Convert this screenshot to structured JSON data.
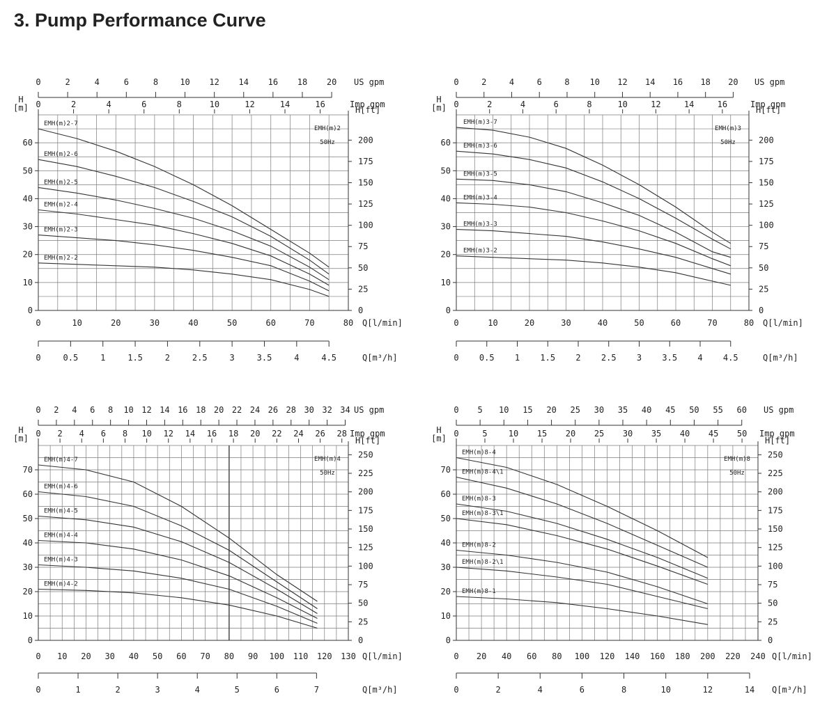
{
  "page": {
    "title": "3. Pump Performance Curve"
  },
  "colors": {
    "grid": "#7a7a7a",
    "curve": "#333333",
    "text": "#222222",
    "background": "#ffffff"
  },
  "chart_data": [
    {
      "type": "line",
      "model": "EMH(m)2",
      "frequency": "50Hz",
      "units": {
        "h_m": "H\n[m]",
        "h_ft": "H[ft]",
        "q_lmin": "Q[l/min]",
        "q_m3h": "Q[m³/h]",
        "usgpm": "US gpm",
        "impgpm": "Imp gpm"
      },
      "xlim": [
        0,
        80
      ],
      "ylim": [
        0,
        70
      ],
      "ftmax": 229.7,
      "ticks": {
        "q_lmin": [
          "0",
          "10",
          "20",
          "30",
          "40",
          "50",
          "60",
          "70",
          "80"
        ],
        "q_m3h": [
          "0",
          "0.5",
          "1",
          "1.5",
          "2",
          "2.5",
          "3",
          "3.5",
          "4",
          "4.5"
        ],
        "usgpm": [
          "0",
          "2",
          "4",
          "6",
          "8",
          "10",
          "12",
          "14",
          "16",
          "18",
          "20"
        ],
        "impgpm": [
          "0",
          "2",
          "4",
          "6",
          "8",
          "10",
          "12",
          "14",
          "16"
        ],
        "h_m": [
          "0",
          "10",
          "20",
          "30",
          "40",
          "50",
          "60"
        ],
        "h_ft": [
          "0",
          "25",
          "50",
          "75",
          "100",
          "125",
          "150",
          "175",
          "200"
        ]
      },
      "series": [
        {
          "name": "EMH(m)2-7",
          "x": [
            0,
            10,
            20,
            30,
            40,
            50,
            60,
            70,
            75
          ],
          "y": [
            65,
            61.5,
            57,
            51.5,
            45,
            37.5,
            29,
            20.5,
            15.5
          ]
        },
        {
          "name": "EMH(m)2-6",
          "x": [
            0,
            10,
            20,
            30,
            40,
            50,
            60,
            70,
            75
          ],
          "y": [
            54,
            51.5,
            48,
            44,
            39,
            33.5,
            26.5,
            18,
            13
          ]
        },
        {
          "name": "EMH(m)2-5",
          "x": [
            0,
            10,
            20,
            30,
            40,
            50,
            60,
            70,
            75
          ],
          "y": [
            44,
            42,
            39.5,
            36.5,
            33,
            28.5,
            23,
            15.5,
            11
          ]
        },
        {
          "name": "EMH(m)2-4",
          "x": [
            0,
            10,
            20,
            30,
            40,
            50,
            60,
            70,
            75
          ],
          "y": [
            36,
            34.5,
            32.5,
            30.5,
            27.5,
            24,
            19.5,
            13,
            9
          ]
        },
        {
          "name": "EMH(m)2-3",
          "x": [
            0,
            10,
            20,
            30,
            40,
            50,
            60,
            70,
            75
          ],
          "y": [
            27,
            26,
            25,
            23.5,
            21.5,
            19,
            16,
            10.5,
            7
          ]
        },
        {
          "name": "EMH(m)2-2",
          "x": [
            0,
            10,
            20,
            30,
            40,
            50,
            60,
            70,
            75
          ],
          "y": [
            17,
            16.5,
            16,
            15.5,
            14.5,
            13,
            11,
            7.5,
            5
          ]
        }
      ]
    },
    {
      "type": "line",
      "model": "EMH(m)3",
      "frequency": "50Hz",
      "units": {
        "h_m": "H\n[m]",
        "h_ft": "H[ft]",
        "q_lmin": "Q[l/min]",
        "q_m3h": "Q[m³/h]",
        "usgpm": "US gpm",
        "impgpm": "Imp gpm"
      },
      "xlim": [
        0,
        80
      ],
      "ylim": [
        0,
        70
      ],
      "ftmax": 229.7,
      "ticks": {
        "q_lmin": [
          "0",
          "10",
          "20",
          "30",
          "40",
          "50",
          "60",
          "70",
          "80"
        ],
        "q_m3h": [
          "0",
          "0.5",
          "1",
          "1.5",
          "2",
          "2.5",
          "3",
          "3.5",
          "4",
          "4.5"
        ],
        "usgpm": [
          "0",
          "2",
          "4",
          "6",
          "8",
          "10",
          "12",
          "14",
          "16",
          "18",
          "20"
        ],
        "impgpm": [
          "0",
          "2",
          "4",
          "6",
          "8",
          "10",
          "12",
          "14",
          "16"
        ],
        "h_m": [
          "0",
          "10",
          "20",
          "30",
          "40",
          "50",
          "60"
        ],
        "h_ft": [
          "0",
          "25",
          "50",
          "75",
          "100",
          "125",
          "150",
          "175",
          "200"
        ]
      },
      "series": [
        {
          "name": "EMH(m)3-7",
          "x": [
            0,
            10,
            20,
            30,
            40,
            50,
            60,
            70,
            75
          ],
          "y": [
            65.5,
            64.5,
            62,
            58,
            52,
            45,
            37,
            28,
            24
          ]
        },
        {
          "name": "EMH(m)3-6",
          "x": [
            0,
            10,
            20,
            30,
            40,
            50,
            60,
            70,
            75
          ],
          "y": [
            57,
            56,
            54,
            51,
            46,
            40,
            33,
            25.5,
            22
          ]
        },
        {
          "name": "EMH(m)3-5",
          "x": [
            0,
            10,
            20,
            30,
            40,
            50,
            60,
            70,
            75
          ],
          "y": [
            47,
            46.5,
            45,
            42.5,
            38.5,
            34,
            28,
            21,
            19
          ]
        },
        {
          "name": "EMH(m)3-4",
          "x": [
            0,
            10,
            20,
            30,
            40,
            50,
            60,
            70,
            75
          ],
          "y": [
            38.5,
            38,
            37,
            35,
            32,
            28.5,
            24,
            18.5,
            16
          ]
        },
        {
          "name": "EMH(m)3-3",
          "x": [
            0,
            10,
            20,
            30,
            40,
            50,
            60,
            70,
            75
          ],
          "y": [
            29,
            28.5,
            27.5,
            26.5,
            24.5,
            22,
            19,
            15,
            13
          ]
        },
        {
          "name": "EMH(m)3-2",
          "x": [
            0,
            10,
            20,
            30,
            40,
            50,
            60,
            70,
            75
          ],
          "y": [
            19.5,
            19,
            18.5,
            18,
            17,
            15.5,
            13.5,
            10.5,
            9
          ]
        }
      ]
    },
    {
      "type": "line",
      "model": "EMH(m)4",
      "frequency": "50Hz",
      "units": {
        "h_m": "H\n[m]",
        "h_ft": "H[ft]",
        "q_lmin": "Q[l/min]",
        "q_m3h": "Q[m³/h]",
        "usgpm": "US gpm",
        "impgpm": "Imp gpm"
      },
      "xlim": [
        0,
        130
      ],
      "ylim": [
        0,
        80
      ],
      "ftmax": 262.5,
      "ticks": {
        "q_lmin": [
          "0",
          "10",
          "20",
          "30",
          "40",
          "50",
          "60",
          "70",
          "80",
          "90",
          "100",
          "110",
          "120",
          "130"
        ],
        "q_m3h": [
          "0",
          "1",
          "2",
          "3",
          "4",
          "5",
          "6",
          "7"
        ],
        "usgpm": [
          "0",
          "2",
          "4",
          "6",
          "8",
          "10",
          "12",
          "14",
          "16",
          "18",
          "20",
          "22",
          "24",
          "26",
          "28",
          "30",
          "32",
          "34"
        ],
        "impgpm": [
          "0",
          "2",
          "4",
          "6",
          "8",
          "10",
          "12",
          "14",
          "16",
          "18",
          "20",
          "22",
          "24",
          "26",
          "28"
        ],
        "h_m": [
          "0",
          "10",
          "20",
          "30",
          "40",
          "50",
          "60",
          "70"
        ],
        "h_ft": [
          "0",
          "25",
          "50",
          "75",
          "100",
          "125",
          "150",
          "175",
          "200",
          "225",
          "250"
        ]
      },
      "series": [
        {
          "name": "EMH(m)4-7",
          "x": [
            0,
            20,
            40,
            60,
            80,
            100,
            117
          ],
          "y": [
            72,
            70,
            65,
            55,
            42,
            27,
            16
          ]
        },
        {
          "name": "EMH(m)4-6",
          "x": [
            0,
            20,
            40,
            60,
            80,
            100,
            117
          ],
          "y": [
            61,
            59,
            55,
            47,
            37,
            24,
            13
          ]
        },
        {
          "name": "EMH(m)4-5",
          "x": [
            0,
            20,
            40,
            60,
            80,
            100,
            117
          ],
          "y": [
            51,
            49.5,
            46.5,
            40.5,
            32,
            21,
            11
          ]
        },
        {
          "name": "EMH(m)4-4",
          "x": [
            0,
            20,
            40,
            60,
            80,
            100,
            117
          ],
          "y": [
            41,
            40,
            37.5,
            33,
            26.5,
            17.5,
            9
          ]
        },
        {
          "name": "EMH(m)4-3",
          "x": [
            0,
            20,
            40,
            60,
            80,
            100,
            117
          ],
          "y": [
            31,
            30,
            28.5,
            25.5,
            21,
            14,
            7
          ]
        },
        {
          "name": "EMH(m)4-2",
          "x": [
            0,
            20,
            40,
            60,
            80,
            100,
            117
          ],
          "y": [
            21,
            20.5,
            19.5,
            17.5,
            14.5,
            10,
            5
          ]
        }
      ]
    },
    {
      "type": "line",
      "model": "EMH(m)8",
      "frequency": "50Hz",
      "units": {
        "h_m": "H\n[m]",
        "h_ft": "H[ft]",
        "q_lmin": "Q[l/min]",
        "q_m3h": "Q[m³/h]",
        "usgpm": "US gpm",
        "impgpm": "Imp gpm"
      },
      "xlim": [
        0,
        240
      ],
      "ylim": [
        0,
        80
      ],
      "ftmax": 262.5,
      "ticks": {
        "q_lmin": [
          "0",
          "20",
          "40",
          "60",
          "80",
          "100",
          "120",
          "140",
          "160",
          "180",
          "200",
          "220",
          "240"
        ],
        "q_m3h": [
          "0",
          "2",
          "4",
          "6",
          "8",
          "10",
          "12",
          "14"
        ],
        "usgpm": [
          "0",
          "5",
          "10",
          "15",
          "20",
          "25",
          "30",
          "35",
          "40",
          "45",
          "50",
          "55",
          "60"
        ],
        "impgpm": [
          "0",
          "5",
          "10",
          "15",
          "20",
          "25",
          "30",
          "35",
          "40",
          "45",
          "50"
        ],
        "h_m": [
          "0",
          "10",
          "20",
          "30",
          "40",
          "50",
          "60",
          "70"
        ],
        "h_ft": [
          "0",
          "25",
          "50",
          "75",
          "100",
          "125",
          "150",
          "175",
          "200",
          "225",
          "250"
        ]
      },
      "series": [
        {
          "name": "EMH(m)8-4",
          "x": [
            0,
            40,
            80,
            120,
            160,
            200
          ],
          "y": [
            75,
            71,
            64,
            55,
            45,
            34
          ]
        },
        {
          "name": "EMH(m)8-4\\1",
          "x": [
            0,
            40,
            80,
            120,
            160,
            200
          ],
          "y": [
            67,
            62.5,
            56,
            48,
            39,
            30
          ]
        },
        {
          "name": "EMH(m)8-3",
          "x": [
            0,
            40,
            80,
            120,
            160,
            200
          ],
          "y": [
            56,
            53,
            48,
            41.5,
            34,
            25.5
          ]
        },
        {
          "name": "EMH(m)8-3\\1",
          "x": [
            0,
            40,
            80,
            120,
            160,
            200
          ],
          "y": [
            50,
            47.5,
            43,
            37.5,
            30.5,
            23
          ]
        },
        {
          "name": "EMH(m)8-2",
          "x": [
            0,
            40,
            80,
            120,
            160,
            200
          ],
          "y": [
            37,
            35,
            32,
            28,
            22,
            15
          ]
        },
        {
          "name": "EMH(m)8-2\\1",
          "x": [
            0,
            40,
            80,
            120,
            160,
            200
          ],
          "y": [
            30,
            28.5,
            26,
            23,
            18,
            13
          ]
        },
        {
          "name": "EMH(m)8-1",
          "x": [
            0,
            40,
            80,
            120,
            160,
            200
          ],
          "y": [
            18,
            17,
            15.5,
            13,
            10,
            6.5
          ]
        }
      ]
    }
  ]
}
